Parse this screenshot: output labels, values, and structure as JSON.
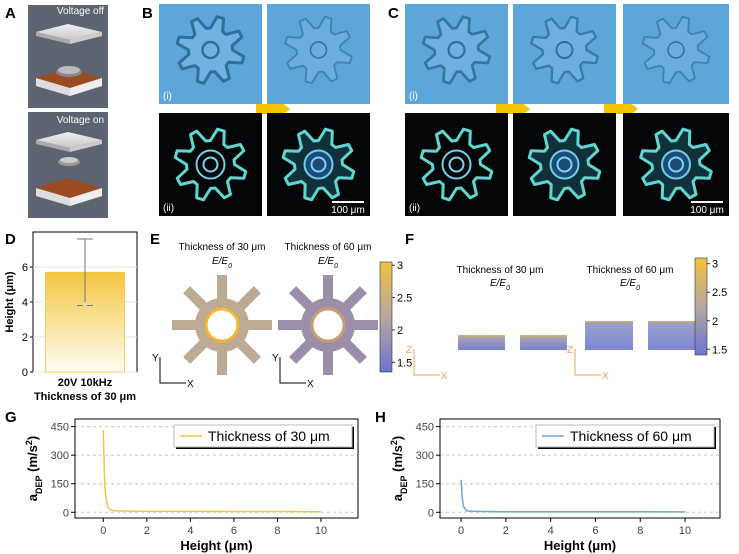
{
  "panel_labels": [
    "A",
    "B",
    "C",
    "D",
    "E",
    "F",
    "G",
    "H"
  ],
  "a": {
    "top": "Voltage off",
    "bottom": "Voltage on"
  },
  "b": {
    "label_i": "(i)",
    "label_ii": "(ii)",
    "scale": "100 μm"
  },
  "c": {
    "label_i": "(i)",
    "label_ii": "(ii)",
    "scale": "100 μm"
  },
  "e": {
    "titles": [
      "Thickness of 30 μm",
      "Thickness of 60 μm"
    ],
    "ratio_parts": [
      "E/E",
      "0"
    ],
    "colorbar_ticks": [
      3,
      2.5,
      2,
      1.5
    ],
    "clim": [
      1.35,
      3.05
    ],
    "axis_v": "Y",
    "axis_h": "X"
  },
  "f": {
    "titles": [
      "Thickness of 30 μm",
      "Thickness of 60 μm"
    ],
    "ratio_parts": [
      "E/E",
      "0"
    ],
    "colorbar_ticks": [
      3,
      2.5,
      2,
      1.5
    ],
    "clim": [
      1.4,
      3.1
    ],
    "axis_v": "Z",
    "axis_h": "X"
  },
  "chart_data": [
    {
      "type": "bar",
      "ylabel": "Height (μm)",
      "categories": [
        "20V 10kHz\nThickness of 30 μm"
      ],
      "values": [
        5.7
      ],
      "errors": [
        1.9
      ],
      "ylim": [
        0,
        8
      ],
      "yticks": [
        0,
        2,
        4,
        6
      ],
      "color": "#f3c640"
    },
    {
      "type": "line",
      "ylabel_parts": [
        "a",
        "DEP",
        " (m/s",
        "2",
        ")"
      ],
      "xlabel": "Height (μm)",
      "x": [
        0,
        0.05,
        0.1,
        0.2,
        0.3,
        0.5,
        1,
        2,
        4,
        6,
        8,
        10
      ],
      "series": [
        {
          "name": "Thickness of 30 μm",
          "color": "#f5c242",
          "values": [
            430,
            200,
            90,
            30,
            15,
            8,
            6,
            5,
            5,
            4,
            4,
            3
          ]
        }
      ],
      "xlim": [
        -1.3,
        11.7
      ],
      "ylim": [
        -30,
        490
      ],
      "xticks": [
        0,
        2,
        4,
        6,
        8,
        10
      ],
      "yticks": [
        0,
        150,
        300,
        450
      ],
      "grid": true,
      "legend": "top right"
    },
    {
      "type": "line",
      "ylabel_parts": [
        "a",
        "DEP",
        " (m/s",
        "2",
        ")"
      ],
      "xlabel": "Height (μm)",
      "x": [
        0,
        0.05,
        0.1,
        0.2,
        0.3,
        0.5,
        1,
        2,
        4,
        6,
        8,
        10
      ],
      "series": [
        {
          "name": "Thickness of 60 μm",
          "color": "#6fa6d6",
          "values": [
            170,
            80,
            35,
            12,
            7,
            5,
            4,
            3,
            3,
            3,
            3,
            2
          ]
        }
      ],
      "xlim": [
        -0.94,
        11.56
      ],
      "ylim": [
        -30,
        490
      ],
      "xticks": [
        0,
        2,
        4,
        6,
        8,
        10
      ],
      "yticks": [
        0,
        150,
        300,
        450
      ],
      "grid": true,
      "legend": "top right"
    }
  ]
}
